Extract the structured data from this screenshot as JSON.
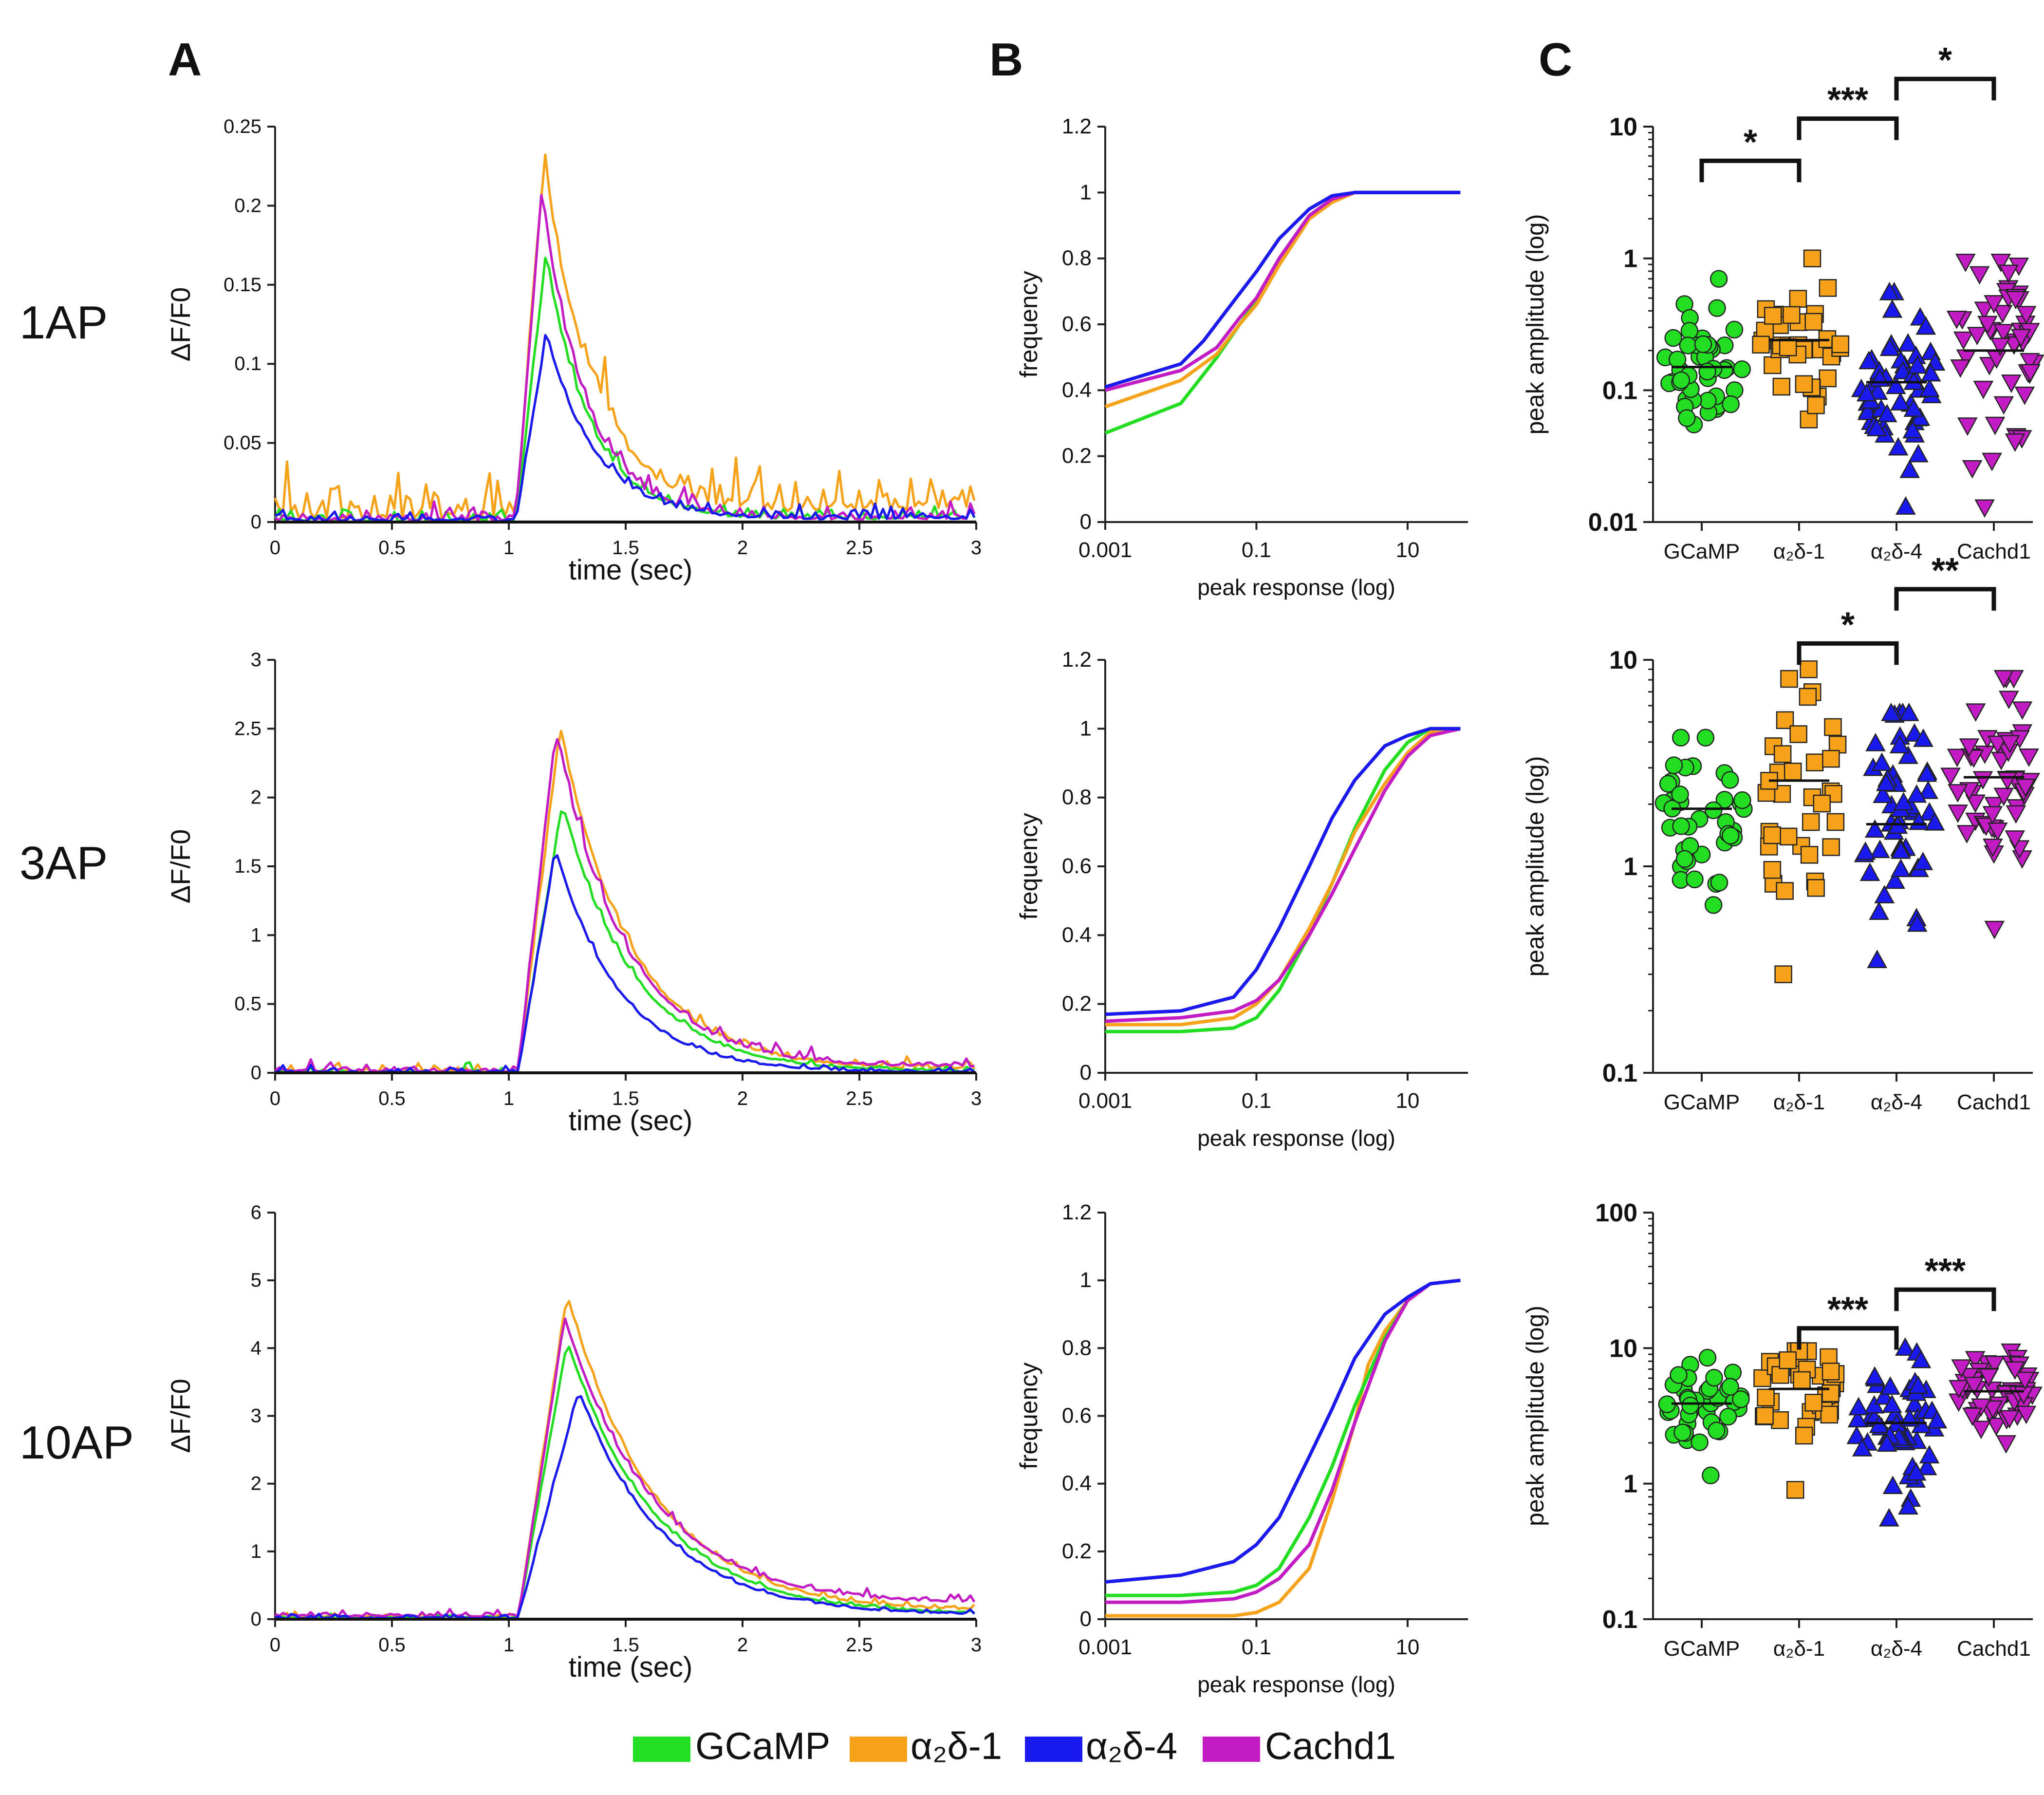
{
  "figure": {
    "panel_labels": [
      "A",
      "B",
      "C"
    ],
    "row_labels": [
      "1AP",
      "3AP",
      "10AP"
    ],
    "legend": [
      {
        "name": "GCaMP",
        "color": "#22dd22"
      },
      {
        "name": "α₂δ-1",
        "color": "#f7a21b"
      },
      {
        "name": "α₂δ-4",
        "color": "#1a1aee"
      },
      {
        "name": "Cachd1",
        "color": "#c41cc4"
      }
    ]
  },
  "chart_data": [
    {
      "panel": "A",
      "row": "1AP",
      "type": "line",
      "title": "",
      "xlabel": "time (sec)",
      "ylabel": "ΔF/F0",
      "xlim": [
        0,
        3
      ],
      "ylim": [
        0,
        0.25
      ],
      "xticks": [
        0,
        0.5,
        1,
        1.5,
        2,
        2.5,
        3
      ],
      "xtick_labels": [
        "0",
        "0.5",
        "1",
        "1.5",
        "2",
        "2.5",
        "3"
      ],
      "yticks": [
        0,
        0.05,
        0.1,
        0.15,
        0.2,
        0.25
      ],
      "ytick_labels": [
        "0",
        "0.05",
        "0.1",
        "0.15",
        "0.2",
        "0.25"
      ],
      "series": [
        {
          "name": "α₂δ-1",
          "color": "#f7a21b",
          "onset": 1.03,
          "peak_t": 1.15,
          "peak": 0.225,
          "tau": 0.22,
          "base": 0.008,
          "noise": 0.014
        },
        {
          "name": "GCaMP",
          "color": "#22dd22",
          "onset": 1.03,
          "peak_t": 1.16,
          "peak": 0.168,
          "tau": 0.19,
          "base": 0.002,
          "noise": 0.004
        },
        {
          "name": "Cachd1",
          "color": "#c41cc4",
          "onset": 1.03,
          "peak_t": 1.14,
          "peak": 0.207,
          "tau": 0.19,
          "base": 0.002,
          "noise": 0.005
        },
        {
          "name": "α₂δ-4",
          "color": "#1a1aee",
          "onset": 1.03,
          "peak_t": 1.16,
          "peak": 0.118,
          "tau": 0.21,
          "base": 0.002,
          "noise": 0.004
        }
      ]
    },
    {
      "panel": "A",
      "row": "3AP",
      "type": "line",
      "title": "",
      "xlabel": "time (sec)",
      "ylabel": "ΔF/F0",
      "xlim": [
        0,
        3
      ],
      "ylim": [
        0,
        3
      ],
      "xticks": [
        0,
        0.5,
        1,
        1.5,
        2,
        2.5,
        3
      ],
      "xtick_labels": [
        "0",
        "0.5",
        "1",
        "1.5",
        "2",
        "2.5",
        "3"
      ],
      "yticks": [
        0,
        0.5,
        1,
        1.5,
        2,
        2.5,
        3
      ],
      "ytick_labels": [
        "0",
        "0.5",
        "1",
        "1.5",
        "2",
        "2.5",
        "3"
      ],
      "series": [
        {
          "name": "α₂δ-1",
          "color": "#f7a21b",
          "onset": 1.04,
          "peak_t": 1.22,
          "peak": 2.5,
          "tau": 0.3,
          "base": 0.02,
          "noise": 0.03
        },
        {
          "name": "GCaMP",
          "color": "#22dd22",
          "onset": 1.04,
          "peak_t": 1.23,
          "peak": 1.95,
          "tau": 0.3,
          "base": 0.0,
          "noise": 0.02
        },
        {
          "name": "Cachd1",
          "color": "#c41cc4",
          "onset": 1.04,
          "peak_t": 1.2,
          "peak": 2.47,
          "tau": 0.3,
          "base": 0.04,
          "noise": 0.04
        },
        {
          "name": "α₂δ-4",
          "color": "#1a1aee",
          "onset": 1.04,
          "peak_t": 1.2,
          "peak": 1.62,
          "tau": 0.27,
          "base": 0.0,
          "noise": 0.02
        }
      ]
    },
    {
      "panel": "A",
      "row": "10AP",
      "type": "line",
      "title": "",
      "xlabel": "time (sec)",
      "ylabel": "ΔF/F0",
      "xlim": [
        0,
        3
      ],
      "ylim": [
        0,
        6
      ],
      "xticks": [
        0,
        0.5,
        1,
        1.5,
        2,
        2.5,
        3
      ],
      "xtick_labels": [
        "0",
        "0.5",
        "1",
        "1.5",
        "2",
        "2.5",
        "3"
      ],
      "yticks": [
        0,
        1,
        2,
        3,
        4,
        5,
        6
      ],
      "ytick_labels": [
        "0",
        "1",
        "2",
        "3",
        "4",
        "5",
        "6"
      ],
      "series": [
        {
          "name": "α₂δ-1",
          "color": "#f7a21b",
          "onset": 1.04,
          "peak_t": 1.25,
          "peak": 4.78,
          "tau": 0.38,
          "base": 0.1,
          "noise": 0.04
        },
        {
          "name": "GCaMP",
          "color": "#22dd22",
          "onset": 1.04,
          "peak_t": 1.25,
          "peak": 4.1,
          "tau": 0.38,
          "base": 0.05,
          "noise": 0.03
        },
        {
          "name": "Cachd1",
          "color": "#c41cc4",
          "onset": 1.04,
          "peak_t": 1.24,
          "peak": 4.42,
          "tau": 0.4,
          "base": 0.2,
          "noise": 0.05
        },
        {
          "name": "α₂δ-4",
          "color": "#1a1aee",
          "onset": 1.04,
          "peak_t": 1.3,
          "peak": 3.37,
          "tau": 0.36,
          "base": 0.05,
          "noise": 0.03
        }
      ]
    },
    {
      "panel": "B",
      "row": "1AP",
      "type": "line",
      "title": "",
      "xlabel": "peak response (log)",
      "ylabel": "frequency",
      "xscale": "log",
      "xlim": [
        0.001,
        63
      ],
      "ylim": [
        0,
        1.2
      ],
      "xticks": [
        0.001,
        0.1,
        10
      ],
      "xtick_labels": [
        "0.001",
        "0.1",
        "10"
      ],
      "yticks": [
        0,
        0.2,
        0.4,
        0.6,
        0.8,
        1,
        1.2
      ],
      "ytick_labels": [
        "0",
        "0.2",
        "0.4",
        "0.6",
        "0.8",
        "1",
        "1.2"
      ],
      "series": [
        {
          "name": "GCaMP",
          "color": "#22dd22",
          "x": [
            0.001,
            0.01,
            0.03,
            0.06,
            0.1,
            0.2,
            0.5,
            1,
            2,
            5,
            50
          ],
          "y": [
            0.27,
            0.36,
            0.5,
            0.6,
            0.67,
            0.8,
            0.93,
            0.98,
            1,
            1,
            1
          ]
        },
        {
          "name": "α₂δ-1",
          "color": "#f7a21b",
          "x": [
            0.001,
            0.01,
            0.03,
            0.06,
            0.1,
            0.2,
            0.5,
            1,
            2,
            5,
            50
          ],
          "y": [
            0.35,
            0.43,
            0.51,
            0.6,
            0.66,
            0.78,
            0.92,
            0.97,
            1,
            1,
            1
          ]
        },
        {
          "name": "Cachd1",
          "color": "#c41cc4",
          "x": [
            0.001,
            0.01,
            0.03,
            0.06,
            0.1,
            0.2,
            0.5,
            1,
            2,
            5,
            50
          ],
          "y": [
            0.4,
            0.46,
            0.53,
            0.62,
            0.68,
            0.8,
            0.93,
            0.98,
            1,
            1,
            1
          ]
        },
        {
          "name": "α₂δ-4",
          "color": "#1a1aee",
          "x": [
            0.001,
            0.01,
            0.02,
            0.05,
            0.1,
            0.2,
            0.5,
            1,
            2,
            5,
            50
          ],
          "y": [
            0.41,
            0.48,
            0.55,
            0.67,
            0.76,
            0.86,
            0.95,
            0.99,
            1,
            1,
            1
          ]
        }
      ]
    },
    {
      "panel": "B",
      "row": "3AP",
      "type": "line",
      "title": "",
      "xlabel": "peak response (log)",
      "ylabel": "frequency",
      "xscale": "log",
      "xlim": [
        0.001,
        63
      ],
      "ylim": [
        0,
        1.2
      ],
      "xticks": [
        0.001,
        0.1,
        10
      ],
      "xtick_labels": [
        "0.001",
        "0.1",
        "10"
      ],
      "yticks": [
        0,
        0.2,
        0.4,
        0.6,
        0.8,
        1,
        1.2
      ],
      "ytick_labels": [
        "0",
        "0.2",
        "0.4",
        "0.6",
        "0.8",
        "1",
        "1.2"
      ],
      "series": [
        {
          "name": "GCaMP",
          "color": "#22dd22",
          "x": [
            0.001,
            0.01,
            0.05,
            0.1,
            0.2,
            0.5,
            1,
            2,
            5,
            10,
            20,
            50
          ],
          "y": [
            0.12,
            0.12,
            0.13,
            0.16,
            0.24,
            0.4,
            0.55,
            0.71,
            0.88,
            0.96,
            1,
            1
          ]
        },
        {
          "name": "α₂δ-1",
          "color": "#f7a21b",
          "x": [
            0.001,
            0.01,
            0.05,
            0.1,
            0.2,
            0.5,
            1,
            2,
            5,
            10,
            20,
            50
          ],
          "y": [
            0.14,
            0.14,
            0.16,
            0.2,
            0.27,
            0.42,
            0.55,
            0.7,
            0.84,
            0.93,
            0.99,
            1
          ]
        },
        {
          "name": "Cachd1",
          "color": "#c41cc4",
          "x": [
            0.001,
            0.01,
            0.05,
            0.1,
            0.2,
            0.5,
            1,
            2,
            5,
            10,
            20,
            50
          ],
          "y": [
            0.15,
            0.16,
            0.18,
            0.21,
            0.27,
            0.4,
            0.52,
            0.65,
            0.82,
            0.92,
            0.98,
            1
          ]
        },
        {
          "name": "α₂δ-4",
          "color": "#1a1aee",
          "x": [
            0.001,
            0.01,
            0.05,
            0.1,
            0.2,
            0.5,
            1,
            2,
            5,
            10,
            20,
            50
          ],
          "y": [
            0.17,
            0.18,
            0.22,
            0.3,
            0.42,
            0.6,
            0.74,
            0.85,
            0.95,
            0.98,
            1,
            1
          ]
        }
      ]
    },
    {
      "panel": "B",
      "row": "10AP",
      "type": "line",
      "title": "",
      "xlabel": "peak response (log)",
      "ylabel": "frequency",
      "xscale": "log",
      "xlim": [
        0.001,
        63
      ],
      "ylim": [
        0,
        1.2
      ],
      "xticks": [
        0.001,
        0.1,
        10
      ],
      "xtick_labels": [
        "0.001",
        "0.1",
        "10"
      ],
      "yticks": [
        0,
        0.2,
        0.4,
        0.6,
        0.8,
        1,
        1.2
      ],
      "ytick_labels": [
        "0",
        "0.2",
        "0.4",
        "0.6",
        "0.8",
        "1",
        "1.2"
      ],
      "series": [
        {
          "name": "α₂δ-1",
          "color": "#f7a21b",
          "x": [
            0.001,
            0.05,
            0.1,
            0.2,
            0.5,
            1,
            2,
            3,
            5,
            10,
            20,
            50
          ],
          "y": [
            0.01,
            0.01,
            0.02,
            0.05,
            0.15,
            0.35,
            0.58,
            0.75,
            0.85,
            0.94,
            0.99,
            1
          ]
        },
        {
          "name": "GCaMP",
          "color": "#22dd22",
          "x": [
            0.001,
            0.01,
            0.05,
            0.1,
            0.2,
            0.5,
            1,
            2,
            5,
            10,
            20,
            50
          ],
          "y": [
            0.07,
            0.07,
            0.08,
            0.1,
            0.15,
            0.3,
            0.45,
            0.63,
            0.83,
            0.94,
            0.99,
            1
          ]
        },
        {
          "name": "Cachd1",
          "color": "#c41cc4",
          "x": [
            0.001,
            0.01,
            0.05,
            0.1,
            0.2,
            0.5,
            1,
            2,
            5,
            10,
            20,
            50
          ],
          "y": [
            0.05,
            0.05,
            0.06,
            0.08,
            0.12,
            0.22,
            0.38,
            0.58,
            0.82,
            0.94,
            0.99,
            1
          ]
        },
        {
          "name": "α₂δ-4",
          "color": "#1a1aee",
          "x": [
            0.001,
            0.01,
            0.05,
            0.1,
            0.2,
            0.5,
            1,
            2,
            5,
            10,
            20,
            50
          ],
          "y": [
            0.11,
            0.13,
            0.17,
            0.22,
            0.3,
            0.48,
            0.62,
            0.77,
            0.9,
            0.95,
            0.99,
            1
          ]
        }
      ]
    },
    {
      "panel": "C",
      "row": "1AP",
      "type": "scatter",
      "title": "",
      "xlabel": "",
      "ylabel": "peak amplitude (log)",
      "yscale": "log",
      "ylim": [
        0.01,
        10
      ],
      "yticks": [
        0.01,
        0.1,
        1,
        10
      ],
      "ytick_labels": [
        "0.01",
        "0.1",
        "1",
        "10"
      ],
      "categories": [
        "GCaMP",
        "α₂δ-1",
        "α₂δ-4",
        "Cachd1"
      ],
      "means": [
        0.15,
        0.24,
        0.115,
        0.2
      ],
      "ranges": [
        [
          0.055,
          0.7
        ],
        [
          0.06,
          1.0
        ],
        [
          0.013,
          0.55
        ],
        [
          0.013,
          0.95
        ]
      ],
      "n": [
        45,
        36,
        55,
        55
      ],
      "markers": [
        "circle",
        "square",
        "triangle-up",
        "triangle-down"
      ],
      "significance": [
        {
          "from": 0,
          "to": 1,
          "label": "*",
          "y": 5.5
        },
        {
          "from": 1,
          "to": 2,
          "label": "***",
          "y": 11.5
        },
        {
          "from": 2,
          "to": 3,
          "label": "*",
          "y": 23
        }
      ]
    },
    {
      "panel": "C",
      "row": "3AP",
      "type": "scatter",
      "title": "",
      "xlabel": "",
      "ylabel": "peak amplitude (log)",
      "yscale": "log",
      "ylim": [
        0.1,
        10
      ],
      "yticks": [
        0.1,
        1,
        10
      ],
      "ytick_labels": [
        "0.1",
        "1",
        "10"
      ],
      "categories": [
        "GCaMP",
        "α₂δ-1",
        "α₂δ-4",
        "Cachd1"
      ],
      "means": [
        1.9,
        2.6,
        1.6,
        2.7
      ],
      "ranges": [
        [
          0.65,
          4.2
        ],
        [
          0.3,
          9.0
        ],
        [
          0.35,
          5.5
        ],
        [
          0.5,
          8.2
        ]
      ],
      "n": [
        40,
        36,
        55,
        55
      ],
      "markers": [
        "circle",
        "square",
        "triangle-up",
        "triangle-down"
      ],
      "significance": [
        {
          "from": 1,
          "to": 2,
          "label": "*",
          "y": 12
        },
        {
          "from": 2,
          "to": 3,
          "label": "**",
          "y": 22
        }
      ]
    },
    {
      "panel": "C",
      "row": "10AP",
      "type": "scatter",
      "title": "",
      "xlabel": "",
      "ylabel": "peak amplitude (log)",
      "yscale": "log",
      "ylim": [
        0.1,
        100
      ],
      "yticks": [
        0.1,
        1,
        10,
        100
      ],
      "ytick_labels": [
        "0.1",
        "1",
        "10",
        "100"
      ],
      "categories": [
        "GCaMP",
        "α₂δ-1",
        "α₂δ-4",
        "Cachd1"
      ],
      "means": [
        3.9,
        5.0,
        2.8,
        4.8
      ],
      "ranges": [
        [
          1.15,
          8.5
        ],
        [
          0.9,
          9.5
        ],
        [
          0.55,
          10.0
        ],
        [
          2.0,
          9.5
        ]
      ],
      "n": [
        40,
        36,
        55,
        55
      ],
      "markers": [
        "circle",
        "square",
        "triangle-up",
        "triangle-down"
      ],
      "significance": [
        {
          "from": 1,
          "to": 2,
          "label": "***",
          "y": 14
        },
        {
          "from": 2,
          "to": 3,
          "label": "***",
          "y": 27
        }
      ]
    }
  ]
}
